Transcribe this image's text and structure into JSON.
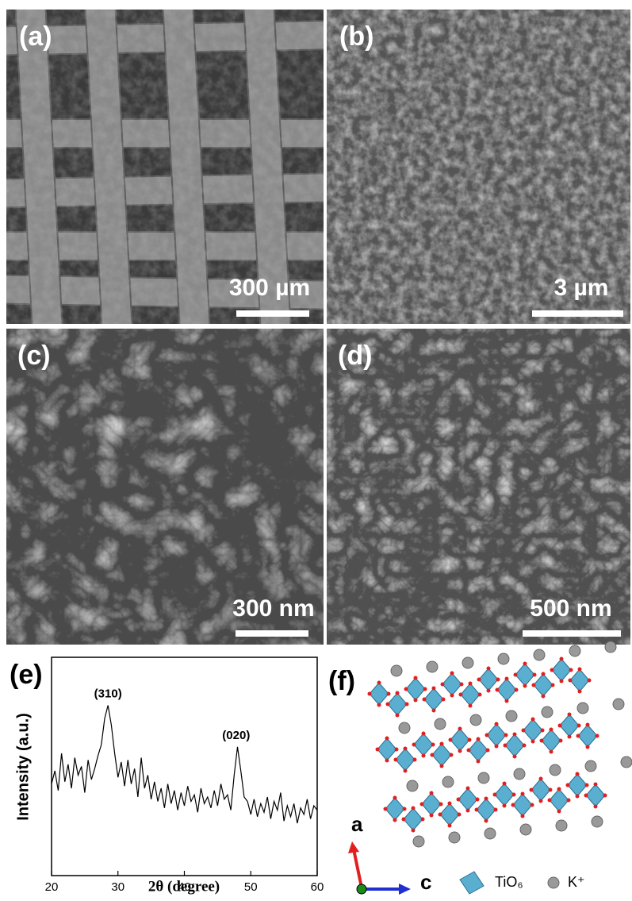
{
  "panels": [
    {
      "label": "(a)",
      "scale_bar": "300 µm"
    },
    {
      "label": "(b)",
      "scale_bar": "3 µm"
    },
    {
      "label": "(c)",
      "scale_bar": "300 nm"
    },
    {
      "label": "(d)",
      "scale_bar": "500 nm"
    }
  ],
  "chart_data": {
    "type": "line",
    "panel_label": "(e)",
    "x_label": "2θ (degree)",
    "y_label": "Intensity (a.u.)",
    "color": "#000000",
    "x": [
      20,
      20.5,
      21,
      21.5,
      22,
      22.5,
      23,
      23.5,
      24,
      24.5,
      25,
      25.5,
      26,
      26.5,
      27,
      27.5,
      28,
      28.5,
      29,
      29.5,
      30,
      30.5,
      31,
      31.5,
      32,
      32.5,
      33,
      33.5,
      34,
      34.5,
      35,
      35.5,
      36,
      36.5,
      37,
      37.5,
      38,
      38.5,
      39,
      39.5,
      40,
      40.5,
      41,
      41.5,
      42,
      42.5,
      43,
      43.5,
      44,
      44.5,
      45,
      45.5,
      46,
      46.5,
      47,
      47.5,
      48,
      48.5,
      49,
      49.5,
      50,
      50.5,
      51,
      51.5,
      52,
      52.5,
      53,
      53.5,
      54,
      54.5,
      55,
      55.5,
      56,
      56.5,
      57,
      57.5,
      58,
      58.5,
      59,
      59.5,
      60
    ],
    "values": [
      4.2,
      4.8,
      3.9,
      5.6,
      4.3,
      5.1,
      4.0,
      5.4,
      4.6,
      5.0,
      3.8,
      5.3,
      4.4,
      4.9,
      5.5,
      6.0,
      7.2,
      7.8,
      6.9,
      5.6,
      4.5,
      5.2,
      4.1,
      5.3,
      4.2,
      4.9,
      3.6,
      5.4,
      4.0,
      4.6,
      3.5,
      4.3,
      3.4,
      4.0,
      3.1,
      4.2,
      3.3,
      3.9,
      3.0,
      3.8,
      3.2,
      4.1,
      3.4,
      3.7,
      2.9,
      4.0,
      3.3,
      3.6,
      3.1,
      3.9,
      3.2,
      4.2,
      3.5,
      3.7,
      3.0,
      4.6,
      5.9,
      4.8,
      3.6,
      3.4,
      2.8,
      3.5,
      2.7,
      3.3,
      2.9,
      3.6,
      2.6,
      3.4,
      3.0,
      3.8,
      2.5,
      3.2,
      2.7,
      3.3,
      2.4,
      3.1,
      2.8,
      3.5,
      2.6,
      3.2,
      3.0
    ],
    "xlim": [
      20,
      60
    ],
    "xticks": [
      20,
      30,
      40,
      50,
      60
    ],
    "ylim": [
      0,
      10
    ],
    "annotations": [
      {
        "text": "(310)",
        "x": 28.5,
        "y": 8.3
      },
      {
        "text": "(020)",
        "x": 47.8,
        "y": 6.4
      }
    ]
  },
  "structure": {
    "label": "(f)",
    "axis_a": "a",
    "axis_c": "c",
    "legend": [
      "TiO₆",
      "K⁺"
    ]
  }
}
